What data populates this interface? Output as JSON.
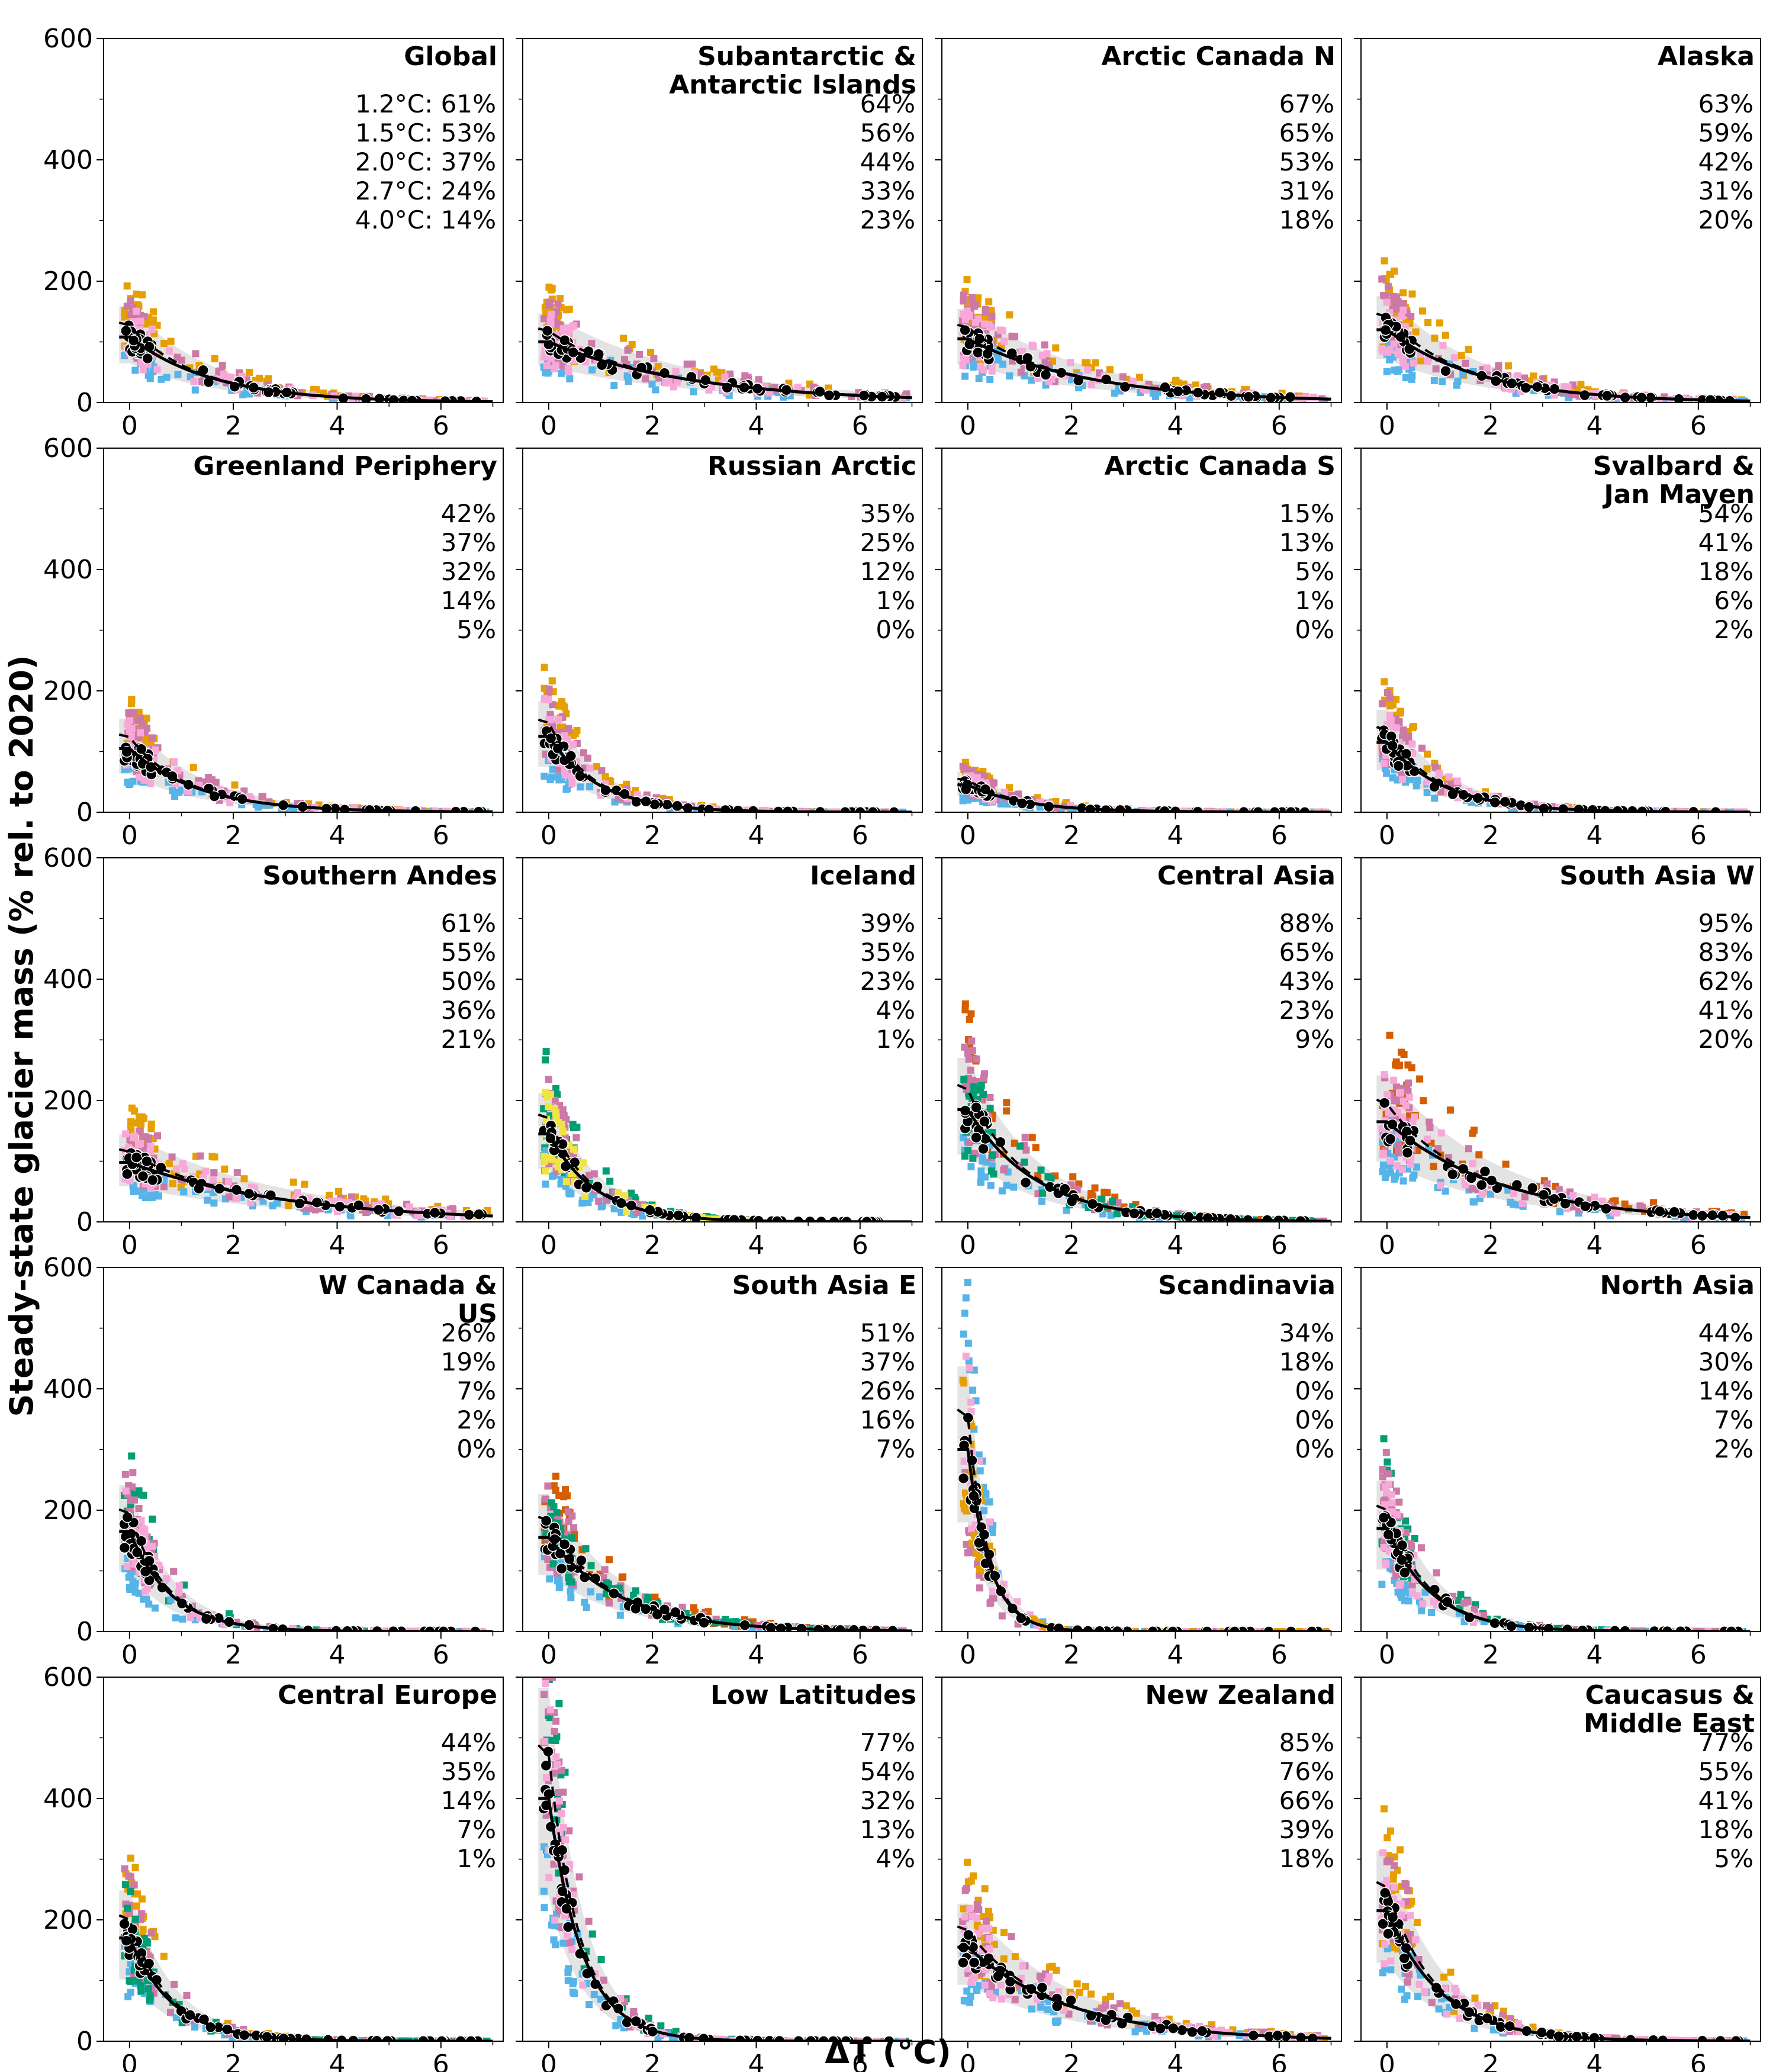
{
  "chart_data": {
    "type": "scatter",
    "xlabel": "ΔT (°C)",
    "ylabel": "Steady-state glacier mass (% rel. to 2020)",
    "xlim": [
      -0.5,
      7.2
    ],
    "ylim": [
      0,
      600
    ],
    "xticks": [
      0,
      2,
      4,
      6
    ],
    "yticks": [
      0,
      200,
      400,
      600
    ],
    "grid": false,
    "warming_levels": [
      "1.2°C",
      "1.5°C",
      "2.0°C",
      "2.7°C",
      "4.0°C"
    ],
    "series_colors": {
      "median_dots": "#000000",
      "fit_line": "#000000",
      "band": "#d9d9d9",
      "models": [
        "#e69f00",
        "#56b4e9",
        "#cc79a7",
        "#f7a8d8",
        "#009e73",
        "#d55e00",
        "#f0e442"
      ]
    },
    "panels": [
      {
        "title": "Global",
        "pct_labels": [
          "1.2°C: 61%",
          "1.5°C: 53%",
          "2.0°C: 37%",
          "2.7°C: 24%",
          "4.0°C: 14%"
        ],
        "start": 108,
        "k": 0.62,
        "models": [
          "#e69f00",
          "#56b4e9",
          "#cc79a7",
          "#f7a8d8"
        ]
      },
      {
        "title": "Subantarctic & Antarctic Islands",
        "pct_labels": [
          "64%",
          "56%",
          "44%",
          "33%",
          "23%"
        ],
        "start": 100,
        "k": 0.36,
        "models": [
          "#e69f00",
          "#56b4e9",
          "#cc79a7",
          "#f7a8d8"
        ]
      },
      {
        "title": "Arctic Canada N",
        "pct_labels": [
          "67%",
          "65%",
          "53%",
          "31%",
          "18%"
        ],
        "start": 105,
        "k": 0.42,
        "models": [
          "#e69f00",
          "#56b4e9",
          "#cc79a7",
          "#f7a8d8"
        ]
      },
      {
        "title": "Alaska",
        "pct_labels": [
          "63%",
          "59%",
          "42%",
          "31%",
          "20%"
        ],
        "start": 120,
        "k": 0.55,
        "models": [
          "#e69f00",
          "#56b4e9",
          "#cc79a7",
          "#f7a8d8"
        ]
      },
      {
        "title": "Greenland Periphery",
        "pct_labels": [
          "42%",
          "37%",
          "32%",
          "14%",
          "5%"
        ],
        "start": 105,
        "k": 0.75,
        "models": [
          "#e69f00",
          "#56b4e9",
          "#cc79a7",
          "#f7a8d8"
        ]
      },
      {
        "title": "Russian Arctic",
        "pct_labels": [
          "35%",
          "25%",
          "12%",
          "1%",
          "0%"
        ],
        "start": 125,
        "k": 1.05,
        "models": [
          "#e69f00",
          "#56b4e9",
          "#cc79a7",
          "#f7a8d8"
        ]
      },
      {
        "title": "Arctic Canada S",
        "pct_labels": [
          "15%",
          "13%",
          "5%",
          "1%",
          "0%"
        ],
        "start": 45,
        "k": 0.9,
        "models": [
          "#e69f00",
          "#56b4e9",
          "#cc79a7",
          "#f7a8d8"
        ]
      },
      {
        "title": "Svalbard & Jan Mayen",
        "pct_labels": [
          "54%",
          "41%",
          "18%",
          "6%",
          "2%"
        ],
        "start": 115,
        "k": 0.9,
        "models": [
          "#e69f00",
          "#56b4e9",
          "#cc79a7",
          "#f7a8d8"
        ]
      },
      {
        "title": "Southern Andes",
        "pct_labels": [
          "61%",
          "55%",
          "50%",
          "36%",
          "21%"
        ],
        "start": 98,
        "k": 0.33,
        "models": [
          "#e69f00",
          "#56b4e9",
          "#cc79a7",
          "#f7a8d8"
        ]
      },
      {
        "title": "Iceland",
        "pct_labels": [
          "39%",
          "35%",
          "23%",
          "4%",
          "1%"
        ],
        "start": 145,
        "k": 1.1,
        "models": [
          "#009e73",
          "#56b4e9",
          "#cc79a7",
          "#f0e442"
        ]
      },
      {
        "title": "Central Asia",
        "pct_labels": [
          "88%",
          "65%",
          "43%",
          "23%",
          "9%"
        ],
        "start": 185,
        "k": 0.75,
        "models": [
          "#d55e00",
          "#56b4e9",
          "#cc79a7",
          "#009e73"
        ]
      },
      {
        "title": "South Asia W",
        "pct_labels": [
          "95%",
          "83%",
          "62%",
          "41%",
          "20%"
        ],
        "start": 165,
        "k": 0.45,
        "models": [
          "#d55e00",
          "#56b4e9",
          "#cc79a7",
          "#f7a8d8"
        ]
      },
      {
        "title": "W Canada & US",
        "pct_labels": [
          "26%",
          "19%",
          "7%",
          "2%",
          "0%"
        ],
        "start": 165,
        "k": 1.25,
        "models": [
          "#009e73",
          "#56b4e9",
          "#cc79a7",
          "#f7a8d8"
        ]
      },
      {
        "title": "South Asia E",
        "pct_labels": [
          "51%",
          "37%",
          "26%",
          "16%",
          "7%"
        ],
        "start": 155,
        "k": 0.72,
        "models": [
          "#d55e00",
          "#56b4e9",
          "#cc79a7",
          "#009e73"
        ]
      },
      {
        "title": "Scandinavia",
        "pct_labels": [
          "34%",
          "18%",
          "0%",
          "0%",
          "0%"
        ],
        "start": 300,
        "k": 2.4,
        "models": [
          "#56b4e9",
          "#cc79a7",
          "#f7a8d8",
          "#e69f00"
        ]
      },
      {
        "title": "North Asia",
        "pct_labels": [
          "44%",
          "30%",
          "14%",
          "7%",
          "2%"
        ],
        "start": 170,
        "k": 1.15,
        "models": [
          "#009e73",
          "#56b4e9",
          "#cc79a7",
          "#f7a8d8"
        ]
      },
      {
        "title": "Central Europe",
        "pct_labels": [
          "44%",
          "35%",
          "14%",
          "7%",
          "1%"
        ],
        "start": 170,
        "k": 1.2,
        "models": [
          "#e69f00",
          "#56b4e9",
          "#cc79a7",
          "#009e73"
        ]
      },
      {
        "title": "Low Latitudes",
        "pct_labels": [
          "77%",
          "54%",
          "32%",
          "13%",
          "4%"
        ],
        "start": 400,
        "k": 1.55,
        "models": [
          "#009e73",
          "#56b4e9",
          "#cc79a7",
          "#f7a8d8"
        ]
      },
      {
        "title": "New Zealand",
        "pct_labels": [
          "85%",
          "76%",
          "66%",
          "39%",
          "18%"
        ],
        "start": 155,
        "k": 0.5,
        "models": [
          "#e69f00",
          "#56b4e9",
          "#cc79a7",
          "#f7a8d8"
        ]
      },
      {
        "title": "Caucasus & Middle East",
        "pct_labels": [
          "77%",
          "55%",
          "41%",
          "18%",
          "5%"
        ],
        "start": 215,
        "k": 0.95,
        "models": [
          "#e69f00",
          "#56b4e9",
          "#cc79a7",
          "#f7a8d8"
        ]
      }
    ]
  }
}
